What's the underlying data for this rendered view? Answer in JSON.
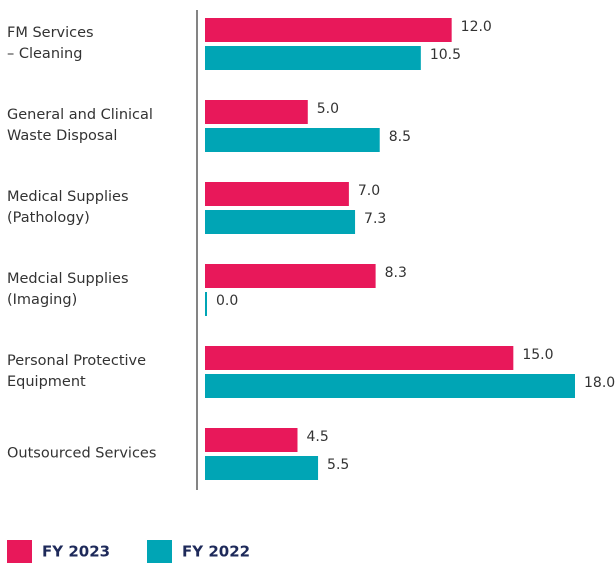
{
  "chart_data": {
    "type": "bar",
    "orientation": "horizontal",
    "categories": [
      "FM Services\n– Cleaning",
      "General and Clinical\nWaste Disposal",
      "Medical Supplies\n(Pathology)",
      "Medcial Supplies\n(Imaging)",
      "Personal Protective\nEquipment",
      "Outsourced Services"
    ],
    "series": [
      {
        "name": "FY 2023",
        "color": "#e8185a",
        "values": [
          12,
          5,
          7,
          8.3,
          15,
          4.5
        ],
        "value_labels": [
          "12.0",
          "5.0",
          "7.0",
          "8.3",
          "15.0",
          "4.5"
        ]
      },
      {
        "name": "FY 2022",
        "color": "#00a5b5",
        "values": [
          10.5,
          8.5,
          7.3,
          0,
          18,
          5.5
        ],
        "value_labels": [
          "10.5",
          "8.5",
          "7.3",
          "0.0",
          "18.0",
          "5.5"
        ]
      }
    ],
    "legend": "bottom-left"
  }
}
